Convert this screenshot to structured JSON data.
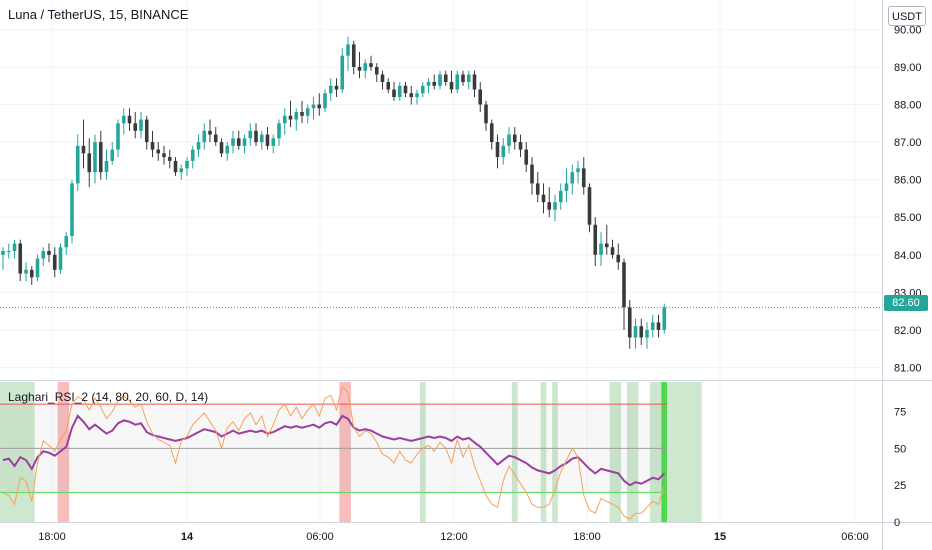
{
  "header": {
    "title": "Luna / TetherUS, 15, BINANCE",
    "currency_button": "USDT",
    "last_price": "82.60"
  },
  "indicator": {
    "title": "Laghari_RSI_2 (14, 80, 20, 60, D, 14)"
  },
  "colors": {
    "up": "#26a69a",
    "down": "#3a3a3a",
    "rsi": "#9c3f9e",
    "stoch": "#f6a15a",
    "upper_band": "#ef5350",
    "lower_band": "#66dd66",
    "mid_band": "#9e9e9e",
    "zone_green": "#c8e6c9",
    "zone_red": "#f7b6b6",
    "zone_bright": "#4cd94c",
    "price_line": "#26a69a"
  },
  "chart_data": [
    {
      "type": "candlestick",
      "title": "Luna / TetherUS, 15, BINANCE",
      "y_axis": {
        "ticks": [
          "81.00",
          "82.00",
          "83.00",
          "84.00",
          "85.00",
          "86.00",
          "87.00",
          "88.00",
          "89.00",
          "90.00"
        ],
        "range": [
          80.8,
          90.25
        ]
      },
      "x_axis": {
        "ticks": [
          "18:00",
          "14",
          "06:00",
          "12:00",
          "18:00",
          "15",
          "06:00"
        ],
        "bold_ticks": [
          "14",
          "15"
        ]
      },
      "last_price": 82.6,
      "ohlc": [
        [
          84.0,
          84.2,
          83.6,
          84.1
        ],
        [
          84.1,
          84.3,
          83.9,
          84.1
        ],
        [
          84.1,
          84.4,
          83.9,
          84.3
        ],
        [
          84.3,
          84.4,
          83.3,
          83.5
        ],
        [
          83.5,
          83.8,
          83.3,
          83.6
        ],
        [
          83.6,
          83.7,
          83.2,
          83.4
        ],
        [
          83.4,
          84.0,
          83.3,
          83.9
        ],
        [
          83.9,
          84.2,
          83.7,
          84.1
        ],
        [
          84.1,
          84.3,
          83.8,
          84.0
        ],
        [
          84.0,
          84.2,
          83.4,
          83.6
        ],
        [
          83.6,
          84.3,
          83.5,
          84.2
        ],
        [
          84.2,
          84.6,
          84.0,
          84.5
        ],
        [
          84.5,
          86.0,
          84.3,
          85.9
        ],
        [
          85.9,
          87.2,
          85.7,
          86.9
        ],
        [
          86.9,
          87.6,
          86.3,
          86.7
        ],
        [
          86.7,
          87.1,
          85.8,
          86.2
        ],
        [
          86.2,
          87.2,
          85.9,
          87.0
        ],
        [
          87.0,
          87.3,
          86.0,
          86.2
        ],
        [
          86.2,
          86.8,
          86.0,
          86.5
        ],
        [
          86.5,
          87.0,
          86.4,
          86.8
        ],
        [
          86.8,
          87.6,
          86.6,
          87.5
        ],
        [
          87.5,
          87.9,
          87.2,
          87.7
        ],
        [
          87.7,
          87.9,
          87.3,
          87.5
        ],
        [
          87.5,
          87.8,
          87.1,
          87.3
        ],
        [
          87.3,
          87.8,
          87.1,
          87.6
        ],
        [
          87.6,
          87.7,
          86.8,
          87.0
        ],
        [
          87.0,
          87.3,
          86.6,
          86.8
        ],
        [
          86.8,
          87.0,
          86.5,
          86.7
        ],
        [
          86.7,
          86.9,
          86.4,
          86.6
        ],
        [
          86.6,
          86.8,
          86.3,
          86.5
        ],
        [
          86.5,
          86.6,
          86.1,
          86.2
        ],
        [
          86.2,
          86.4,
          86.0,
          86.3
        ],
        [
          86.3,
          86.6,
          86.1,
          86.5
        ],
        [
          86.5,
          86.9,
          86.3,
          86.8
        ],
        [
          86.8,
          87.2,
          86.6,
          87.0
        ],
        [
          87.0,
          87.5,
          86.8,
          87.3
        ],
        [
          87.3,
          87.6,
          87.0,
          87.2
        ],
        [
          87.2,
          87.4,
          86.9,
          87.0
        ],
        [
          87.0,
          87.1,
          86.6,
          86.7
        ],
        [
          86.7,
          87.0,
          86.5,
          86.9
        ],
        [
          86.9,
          87.3,
          86.7,
          87.1
        ],
        [
          87.1,
          87.3,
          86.8,
          86.9
        ],
        [
          86.9,
          87.2,
          86.7,
          87.1
        ],
        [
          87.1,
          87.5,
          86.9,
          87.3
        ],
        [
          87.3,
          87.5,
          86.9,
          87.0
        ],
        [
          87.0,
          87.3,
          86.8,
          87.2
        ],
        [
          87.2,
          87.4,
          86.8,
          86.9
        ],
        [
          86.9,
          87.2,
          86.7,
          87.1
        ],
        [
          87.1,
          87.6,
          86.9,
          87.5
        ],
        [
          87.5,
          87.9,
          87.2,
          87.7
        ],
        [
          87.7,
          88.1,
          87.4,
          87.6
        ],
        [
          87.6,
          87.9,
          87.3,
          87.8
        ],
        [
          87.8,
          88.1,
          87.5,
          87.7
        ],
        [
          87.7,
          88.0,
          87.5,
          87.9
        ],
        [
          87.9,
          88.2,
          87.6,
          88.0
        ],
        [
          88.0,
          88.3,
          87.7,
          87.9
        ],
        [
          87.9,
          88.4,
          87.8,
          88.3
        ],
        [
          88.3,
          88.7,
          88.1,
          88.5
        ],
        [
          88.5,
          88.7,
          88.2,
          88.4
        ],
        [
          88.4,
          89.5,
          88.3,
          89.3
        ],
        [
          89.3,
          89.8,
          88.9,
          89.6
        ],
        [
          89.6,
          89.7,
          88.8,
          89.0
        ],
        [
          89.0,
          89.4,
          88.7,
          88.9
        ],
        [
          88.9,
          89.2,
          88.7,
          89.1
        ],
        [
          89.1,
          89.3,
          88.9,
          89.0
        ],
        [
          89.0,
          89.1,
          88.6,
          88.8
        ],
        [
          88.8,
          88.9,
          88.4,
          88.6
        ],
        [
          88.6,
          88.7,
          88.3,
          88.4
        ],
        [
          88.4,
          88.6,
          88.1,
          88.2
        ],
        [
          88.2,
          88.6,
          88.1,
          88.5
        ],
        [
          88.5,
          88.6,
          88.2,
          88.3
        ],
        [
          88.3,
          88.5,
          88.0,
          88.2
        ],
        [
          88.2,
          88.4,
          88.0,
          88.3
        ],
        [
          88.3,
          88.6,
          88.2,
          88.5
        ],
        [
          88.5,
          88.7,
          88.3,
          88.6
        ],
        [
          88.6,
          88.8,
          88.4,
          88.5
        ],
        [
          88.5,
          88.9,
          88.4,
          88.8
        ],
        [
          88.8,
          88.9,
          88.5,
          88.6
        ],
        [
          88.6,
          88.9,
          88.3,
          88.4
        ],
        [
          88.4,
          88.9,
          88.3,
          88.8
        ],
        [
          88.8,
          88.9,
          88.5,
          88.6
        ],
        [
          88.6,
          88.9,
          88.4,
          88.8
        ],
        [
          88.8,
          88.9,
          88.2,
          88.4
        ],
        [
          88.4,
          88.6,
          87.8,
          88.0
        ],
        [
          88.0,
          88.1,
          87.3,
          87.5
        ],
        [
          87.5,
          87.6,
          86.8,
          87.0
        ],
        [
          87.0,
          87.2,
          86.3,
          86.6
        ],
        [
          86.6,
          87.1,
          86.4,
          86.9
        ],
        [
          86.9,
          87.4,
          86.7,
          87.2
        ],
        [
          87.2,
          87.4,
          86.8,
          87.0
        ],
        [
          87.0,
          87.2,
          86.6,
          86.8
        ],
        [
          86.8,
          87.0,
          86.2,
          86.4
        ],
        [
          86.4,
          86.6,
          85.6,
          85.9
        ],
        [
          85.9,
          86.2,
          85.4,
          85.6
        ],
        [
          85.6,
          85.9,
          85.1,
          85.4
        ],
        [
          85.4,
          85.8,
          85.0,
          85.2
        ],
        [
          85.2,
          85.6,
          84.9,
          85.4
        ],
        [
          85.4,
          85.9,
          85.2,
          85.7
        ],
        [
          85.7,
          86.3,
          85.4,
          85.9
        ],
        [
          85.9,
          86.4,
          85.6,
          86.2
        ],
        [
          86.2,
          86.5,
          85.9,
          86.3
        ],
        [
          86.3,
          86.6,
          85.6,
          85.8
        ],
        [
          85.8,
          85.9,
          84.6,
          84.8
        ],
        [
          84.8,
          85.0,
          83.7,
          84.0
        ],
        [
          84.0,
          84.6,
          83.7,
          84.3
        ],
        [
          84.3,
          84.8,
          84.0,
          84.2
        ],
        [
          84.2,
          84.4,
          83.9,
          84.0
        ],
        [
          84.0,
          84.3,
          83.6,
          83.8
        ],
        [
          83.8,
          83.9,
          82.0,
          82.6
        ],
        [
          82.6,
          82.8,
          81.5,
          81.8
        ],
        [
          81.8,
          82.3,
          81.5,
          82.1
        ],
        [
          82.1,
          82.3,
          81.6,
          81.8
        ],
        [
          81.8,
          82.2,
          81.5,
          82.0
        ],
        [
          82.0,
          82.4,
          81.8,
          82.2
        ],
        [
          82.2,
          82.4,
          81.8,
          82.0
        ],
        [
          82.0,
          82.7,
          81.9,
          82.6
        ]
      ]
    },
    {
      "type": "line",
      "title": "Laghari_RSI_2 (14, 80, 20, 60, D, 14)",
      "y_axis": {
        "ticks": [
          "0",
          "25",
          "50",
          "75"
        ],
        "range": [
          0,
          95
        ]
      },
      "bands": {
        "upper": 80,
        "middle": 50,
        "lower": 20
      },
      "series": [
        {
          "name": "RSI",
          "values": [
            42,
            43,
            38,
            44,
            42,
            36,
            44,
            48,
            47,
            45,
            48,
            51,
            64,
            72,
            68,
            63,
            66,
            63,
            60,
            62,
            67,
            69,
            68,
            66,
            67,
            61,
            59,
            58,
            57,
            56,
            55,
            56,
            57,
            59,
            61,
            63,
            62,
            61,
            58,
            60,
            62,
            60,
            61,
            62,
            61,
            62,
            60,
            61,
            63,
            65,
            64,
            65,
            64,
            65,
            66,
            64,
            67,
            68,
            66,
            72,
            70,
            64,
            62,
            63,
            62,
            60,
            58,
            57,
            56,
            57,
            56,
            55,
            56,
            57,
            58,
            57,
            58,
            57,
            55,
            58,
            56,
            57,
            54,
            51,
            47,
            43,
            39,
            42,
            45,
            44,
            42,
            40,
            37,
            35,
            34,
            33,
            35,
            38,
            40,
            43,
            44,
            40,
            36,
            33,
            36,
            35,
            34,
            33,
            28,
            25,
            27,
            26,
            28,
            30,
            29,
            33
          ]
        },
        {
          "name": "Stoch",
          "values": [
            20,
            18,
            12,
            30,
            28,
            14,
            40,
            55,
            52,
            48,
            56,
            62,
            80,
            85,
            83,
            76,
            84,
            78,
            70,
            75,
            82,
            86,
            82,
            78,
            80,
            68,
            60,
            56,
            54,
            52,
            40,
            55,
            58,
            66,
            70,
            74,
            68,
            62,
            50,
            64,
            68,
            62,
            70,
            74,
            66,
            72,
            58,
            66,
            76,
            80,
            72,
            78,
            70,
            76,
            80,
            72,
            84,
            86,
            76,
            92,
            88,
            64,
            58,
            62,
            60,
            54,
            46,
            44,
            40,
            48,
            42,
            40,
            46,
            50,
            52,
            48,
            54,
            50,
            40,
            56,
            44,
            52,
            38,
            28,
            18,
            12,
            10,
            28,
            38,
            32,
            26,
            20,
            12,
            10,
            10,
            12,
            22,
            34,
            42,
            50,
            44,
            18,
            8,
            6,
            16,
            14,
            12,
            10,
            4,
            2,
            6,
            6,
            10,
            14,
            12,
            24
          ]
        }
      ],
      "zones": [
        {
          "start": 0,
          "end": 5,
          "color": "green"
        },
        {
          "start": 10,
          "end": 11,
          "color": "red"
        },
        {
          "start": 59,
          "end": 60,
          "color": "red"
        },
        {
          "start": 73,
          "end": 73,
          "color": "green"
        },
        {
          "start": 89,
          "end": 89,
          "color": "green"
        },
        {
          "start": 94,
          "end": 94,
          "color": "green"
        },
        {
          "start": 96,
          "end": 96,
          "color": "green"
        },
        {
          "start": 106,
          "end": 107,
          "color": "green"
        },
        {
          "start": 109,
          "end": 110,
          "color": "green"
        },
        {
          "start": 113,
          "end": 114,
          "color": "green"
        },
        {
          "start": 115,
          "end": 115,
          "color": "bright"
        },
        {
          "start": 116,
          "end": 121,
          "color": "green"
        }
      ]
    }
  ]
}
